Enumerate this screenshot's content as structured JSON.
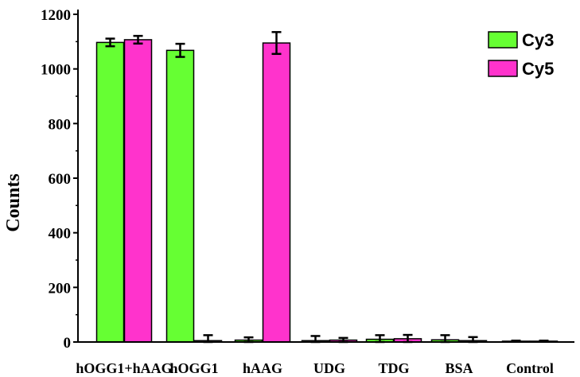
{
  "chart_data": {
    "type": "bar",
    "title": "",
    "xlabel": "",
    "ylabel": "Counts",
    "ylim": [
      0,
      1200
    ],
    "yticks": [
      0,
      200,
      400,
      600,
      800,
      1000,
      1200
    ],
    "categories": [
      "hOGG1+hAAG",
      "hOGG1",
      "hAAG",
      "UDG",
      "TDG",
      "BSA",
      "Control"
    ],
    "series": [
      {
        "name": "Cy3",
        "color": "#66ff33",
        "values": [
          1097,
          1068,
          7,
          5,
          10,
          8,
          3
        ],
        "errors": [
          14,
          24,
          10,
          17,
          15,
          17,
          2
        ]
      },
      {
        "name": "Cy5",
        "color": "#ff33cc",
        "values": [
          1107,
          5,
          1095,
          7,
          12,
          5,
          3
        ],
        "errors": [
          14,
          20,
          40,
          8,
          14,
          13,
          2
        ]
      }
    ],
    "legend": {
      "position": "top-right"
    },
    "grid": false
  }
}
